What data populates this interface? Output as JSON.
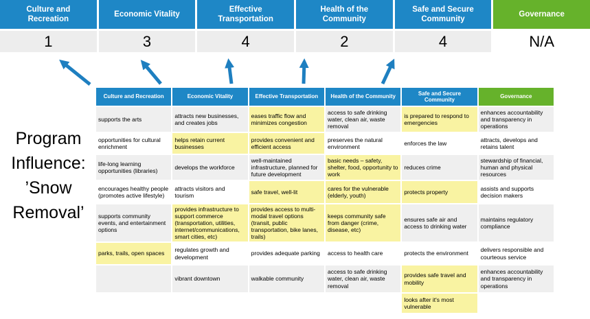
{
  "title": {
    "text": "Program Influence: ’Snow Removal’"
  },
  "scoreboard": {
    "columns": [
      {
        "label": "Culture and Recreation",
        "score": "1",
        "theme": "blue"
      },
      {
        "label": "Economic Vitality",
        "score": "3",
        "theme": "blue"
      },
      {
        "label": "Effective Transportation",
        "score": "4",
        "theme": "blue"
      },
      {
        "label": "Health of the Community",
        "score": "2",
        "theme": "blue"
      },
      {
        "label": "Safe and Secure Community",
        "score": "4",
        "theme": "blue"
      },
      {
        "label": "Governance",
        "score": "N/A",
        "theme": "green"
      }
    ]
  },
  "matrix": {
    "headers": [
      {
        "label": "Culture and Recreation",
        "theme": "blue"
      },
      {
        "label": "Economic Vitality",
        "theme": "blue"
      },
      {
        "label": "Effective Transportation",
        "theme": "blue"
      },
      {
        "label": "Health of the Community",
        "theme": "blue"
      },
      {
        "label": "Safe and Secure Community",
        "theme": "blue"
      },
      {
        "label": "Governance",
        "theme": "green"
      }
    ],
    "rows": [
      [
        {
          "t": "supports the arts",
          "hl": false
        },
        {
          "t": "attracts new businesses, and creates jobs",
          "hl": false
        },
        {
          "t": "eases traffic flow and minimizes congestion",
          "hl": true
        },
        {
          "t": "access to safe drinking water, clean air, waste removal",
          "hl": false
        },
        {
          "t": "is prepared to respond to emergencies",
          "hl": true
        },
        {
          "t": "enhances accountability and transparency in operations",
          "hl": false
        }
      ],
      [
        {
          "t": "opportunities for cultural enrichment",
          "hl": false
        },
        {
          "t": "helps retain current businesses",
          "hl": true
        },
        {
          "t": "provides convenient and efficient access",
          "hl": true
        },
        {
          "t": "preserves the natural environment",
          "hl": false
        },
        {
          "t": "enforces the law",
          "hl": false
        },
        {
          "t": "attracts, develops and retains talent",
          "hl": false
        }
      ],
      [
        {
          "t": "life-long learning opportunities (libraries)",
          "hl": false
        },
        {
          "t": "develops the workforce",
          "hl": false
        },
        {
          "t": "well-maintained infrastructure, planned for future development",
          "hl": false
        },
        {
          "t": "basic needs – safety, shelter, food, opportunity to work",
          "hl": true
        },
        {
          "t": "reduces crime",
          "hl": false
        },
        {
          "t": "stewardship of financial, human and physical resources",
          "hl": false
        }
      ],
      [
        {
          "t": "encourages healthy people (promotes active lifestyle)",
          "hl": false
        },
        {
          "t": "attracts visitors and tourism",
          "hl": false
        },
        {
          "t": "safe travel, well-lit",
          "hl": true
        },
        {
          "t": "cares for the vulnerable (elderly, youth)",
          "hl": true
        },
        {
          "t": "protects property",
          "hl": true
        },
        {
          "t": "assists and supports decision makers",
          "hl": false
        }
      ],
      [
        {
          "t": "supports community events, and entertainment options",
          "hl": false
        },
        {
          "t": "provides infrastructure to support commerce (transportation, utilities, internet/communications, smart cities, etc)",
          "hl": true
        },
        {
          "t": "provides access to multi-modal travel options (transit, public transportation, bike lanes, trails)",
          "hl": true
        },
        {
          "t": "keeps community safe from danger (crime, disease, etc)",
          "hl": true
        },
        {
          "t": "ensures safe air and access to drinking water",
          "hl": false
        },
        {
          "t": "maintains regulatory compliance",
          "hl": false
        }
      ],
      [
        {
          "t": "parks, trails, open spaces",
          "hl": true
        },
        {
          "t": "regulates growth and development",
          "hl": false
        },
        {
          "t": "provides adequate parking",
          "hl": false
        },
        {
          "t": "access to health care",
          "hl": false
        },
        {
          "t": "protects the environment",
          "hl": false
        },
        {
          "t": "delivers responsible and courteous service",
          "hl": false
        }
      ],
      [
        {
          "t": "",
          "hl": false
        },
        {
          "t": "vibrant downtown",
          "hl": false
        },
        {
          "t": "walkable community",
          "hl": false
        },
        {
          "t": "access to safe drinking water, clean air, waste removal",
          "hl": false
        },
        {
          "t": "provides safe travel and mobility",
          "hl": true
        },
        {
          "t": "enhances accountability and transparency in operations",
          "hl": false
        }
      ],
      [
        {
          "t": "",
          "hl": false
        },
        {
          "t": "",
          "hl": false
        },
        {
          "t": "",
          "hl": false
        },
        {
          "t": "",
          "hl": false
        },
        {
          "t": "looks after it's most vulnerable",
          "hl": true
        },
        {
          "t": "",
          "hl": false
        }
      ]
    ]
  },
  "colors": {
    "header_blue": "#1E87C6",
    "header_green": "#66B22B",
    "highlight_yellow": "#F9F3A2",
    "row_gray": "#EFEFEF",
    "score_band_gray": "#EDEDED",
    "arrow_blue": "#1E7FC0"
  }
}
